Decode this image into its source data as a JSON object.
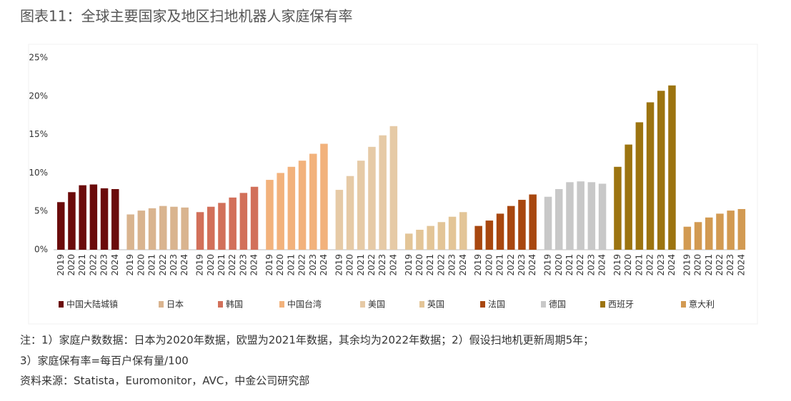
{
  "chart_data": {
    "type": "bar",
    "title": "图表11：全球主要国家及地区扫地机器人家庭保有率",
    "categories": [
      "2019",
      "2020",
      "2021",
      "2022",
      "2023",
      "2024"
    ],
    "series": [
      {
        "name": "中国大陆城镇",
        "color": "#6b0b0b",
        "values": [
          6.2,
          7.5,
          8.4,
          8.5,
          8.0,
          7.9
        ]
      },
      {
        "name": "日本",
        "color": "#d9b48f",
        "values": [
          4.6,
          5.1,
          5.4,
          5.7,
          5.6,
          5.5
        ]
      },
      {
        "name": "韩国",
        "color": "#d2705a",
        "values": [
          4.9,
          5.6,
          6.1,
          6.8,
          7.4,
          8.2
        ]
      },
      {
        "name": "中国台湾",
        "color": "#f2b27c",
        "values": [
          9.1,
          10.0,
          10.8,
          11.6,
          12.5,
          13.8
        ]
      },
      {
        "name": "美国",
        "color": "#e6caa6",
        "values": [
          7.8,
          9.6,
          11.6,
          13.4,
          14.9,
          16.1
        ]
      },
      {
        "name": "英国",
        "color": "#e3c597",
        "values": [
          2.1,
          2.6,
          3.1,
          3.6,
          4.3,
          4.9
        ]
      },
      {
        "name": "法国",
        "color": "#a8470f",
        "values": [
          3.1,
          3.8,
          4.7,
          5.7,
          6.5,
          7.2
        ]
      },
      {
        "name": "德国",
        "color": "#c8c8c8",
        "values": [
          6.9,
          7.9,
          8.8,
          8.9,
          8.8,
          8.6
        ]
      },
      {
        "name": "西班牙",
        "color": "#9c7410",
        "values": [
          10.8,
          13.7,
          16.6,
          19.2,
          20.7,
          21.4
        ]
      },
      {
        "name": "意大利",
        "color": "#d29a52",
        "values": [
          3.0,
          3.6,
          4.2,
          4.7,
          5.1,
          5.3
        ]
      }
    ],
    "ylim": [
      0,
      25
    ],
    "yticks": [
      {
        "value": 0,
        "label": "0%"
      },
      {
        "value": 5,
        "label": "5%"
      },
      {
        "value": 10,
        "label": "10%"
      },
      {
        "value": 15,
        "label": "15%"
      },
      {
        "value": 20,
        "label": "20%"
      },
      {
        "value": 25,
        "label": "25%"
      }
    ],
    "grid": false,
    "notes": [
      "注：1）家庭户数数据：日本为2020年数据，欧盟为2021年数据，其余均为2022年数据；2）假设扫地机更新周期5年；",
      "3）家庭保有率=每百户保有量/100"
    ],
    "source": "资料来源：Statista，Euromonitor，AVC，中金公司研究部"
  }
}
